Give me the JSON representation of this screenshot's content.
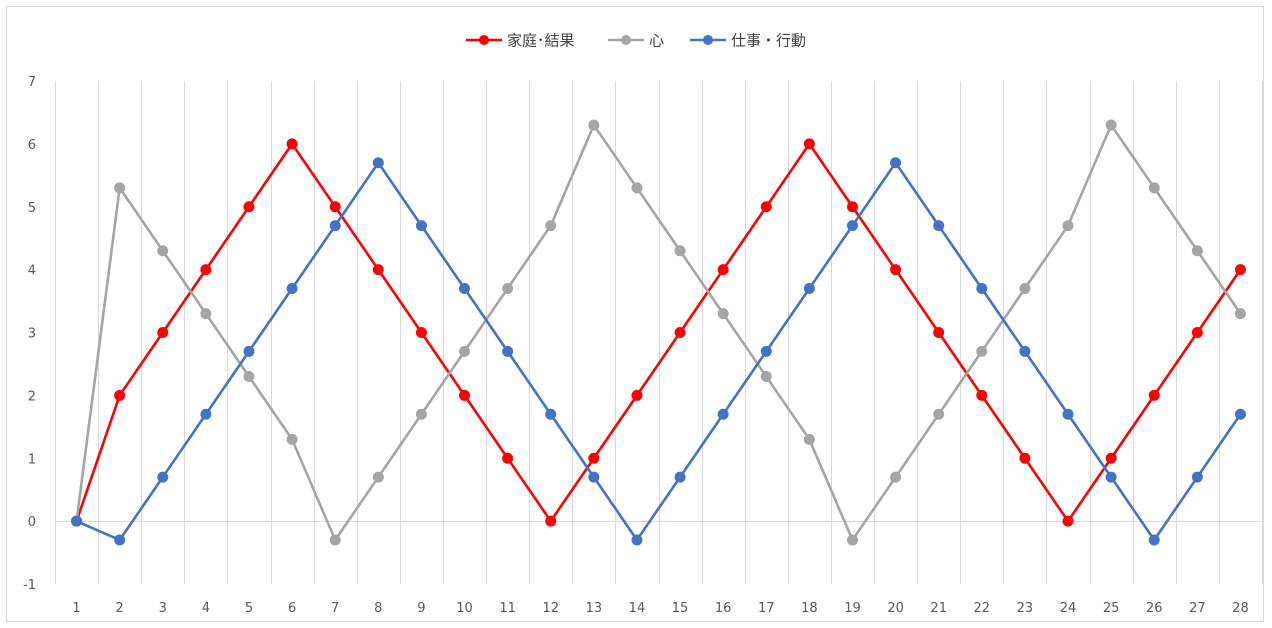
{
  "chart_data": {
    "type": "line",
    "title": "",
    "xlabel": "",
    "ylabel": "",
    "x": [
      1,
      2,
      3,
      4,
      5,
      6,
      7,
      8,
      9,
      10,
      11,
      12,
      13,
      14,
      15,
      16,
      17,
      18,
      19,
      20,
      21,
      22,
      23,
      24,
      25,
      26,
      27,
      28
    ],
    "ylim": [
      -1,
      7
    ],
    "yticks": [
      -1,
      0,
      1,
      2,
      3,
      4,
      5,
      6,
      7
    ],
    "grid": "vertical",
    "legend_position": "top",
    "series": [
      {
        "name": "家庭･結果",
        "color": "#ff0000",
        "values": [
          0,
          2,
          3,
          4,
          5,
          6,
          5,
          4,
          3,
          2,
          1,
          0,
          1,
          2,
          3,
          4,
          5,
          6,
          5,
          4,
          3,
          2,
          1,
          0,
          1,
          2,
          3,
          4
        ]
      },
      {
        "name": "心",
        "color": "#a5a5a5",
        "values": [
          0,
          5.3,
          4.3,
          3.3,
          2.3,
          1.3,
          -0.3,
          0.7,
          1.7,
          2.7,
          3.7,
          4.7,
          6.3,
          5.3,
          4.3,
          3.3,
          2.3,
          1.3,
          -0.3,
          0.7,
          1.7,
          2.7,
          3.7,
          4.7,
          6.3,
          5.3,
          4.3,
          3.3
        ]
      },
      {
        "name": "仕事・行動",
        "color": "#4472c4",
        "values": [
          0,
          -0.3,
          0.7,
          1.7,
          2.7,
          3.7,
          4.7,
          5.7,
          4.7,
          3.7,
          2.7,
          1.7,
          0.7,
          -0.3,
          0.7,
          1.7,
          2.7,
          3.7,
          4.7,
          5.7,
          4.7,
          3.7,
          2.7,
          1.7,
          0.7,
          -0.3,
          0.7,
          1.7
        ]
      }
    ]
  }
}
